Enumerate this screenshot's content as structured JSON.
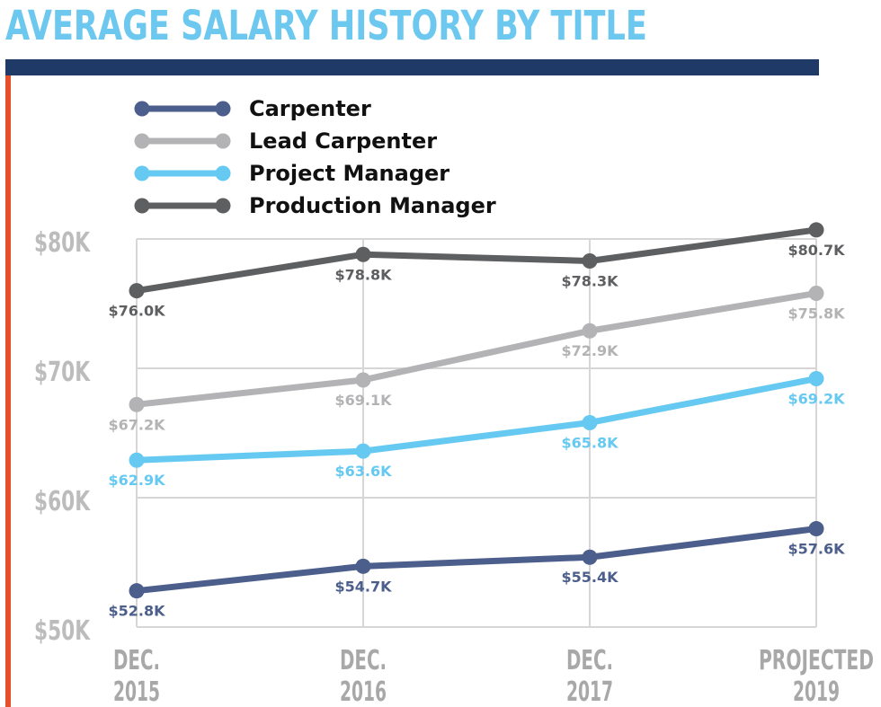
{
  "title": "AVERAGE SALARY HISTORY BY TITLE",
  "colors": {
    "title": "#6cc8ee",
    "title_bar": "#1f3a67",
    "side_rule": "#e5502b",
    "grid": "#d6d6d6",
    "tick_text": "#b5b5b5"
  },
  "chart_data": {
    "type": "line",
    "title": "AVERAGE SALARY HISTORY BY TITLE",
    "xlabel": "",
    "ylabel": "",
    "categories": [
      [
        "DEC.",
        "2015"
      ],
      [
        "DEC.",
        "2016"
      ],
      [
        "DEC.",
        "2017"
      ],
      [
        "PROJECTED",
        "2019"
      ]
    ],
    "ylim": [
      50,
      80
    ],
    "yticks": [
      {
        "value": 80,
        "label": "$80K"
      },
      {
        "value": 70,
        "label": "$70K"
      },
      {
        "value": 60,
        "label": "$60K"
      },
      {
        "value": 50,
        "label": "$50K"
      }
    ],
    "grid": true,
    "legend_position": "top-left",
    "series": [
      {
        "name": "Carpenter",
        "color": "#4c5e8b",
        "values": [
          52.8,
          54.7,
          55.4,
          57.6
        ],
        "labels": [
          "$52.8K",
          "$54.7K",
          "$55.4K",
          "$57.6K"
        ],
        "label_pos": [
          "below",
          "below",
          "below",
          "below"
        ]
      },
      {
        "name": "Lead Carpenter",
        "color": "#b3b3b5",
        "values": [
          67.2,
          69.1,
          72.9,
          75.8
        ],
        "labels": [
          "$67.2K",
          "$69.1K",
          "$72.9K",
          "$75.8K"
        ],
        "label_pos": [
          "below",
          "below",
          "below",
          "below"
        ]
      },
      {
        "name": "Project Manager",
        "color": "#66c9f1",
        "values": [
          62.9,
          63.6,
          65.8,
          69.2
        ],
        "labels": [
          "$62.9K",
          "$63.6K",
          "$65.8K",
          "$69.2K"
        ],
        "label_pos": [
          "below",
          "below",
          "below",
          "below"
        ]
      },
      {
        "name": "Production Manager",
        "color": "#5e5f61",
        "values": [
          76.0,
          78.8,
          78.3,
          80.7
        ],
        "labels": [
          "$76.0K",
          "$78.8K",
          "$78.3K",
          "$80.7K"
        ],
        "label_pos": [
          "below",
          "below",
          "below",
          "below"
        ]
      }
    ]
  }
}
